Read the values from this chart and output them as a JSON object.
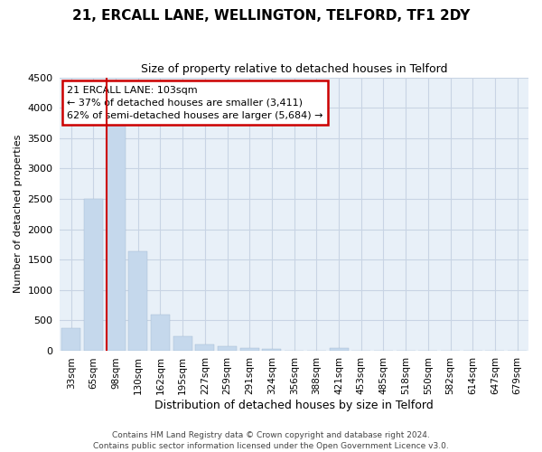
{
  "title": "21, ERCALL LANE, WELLINGTON, TELFORD, TF1 2DY",
  "subtitle": "Size of property relative to detached houses in Telford",
  "xlabel": "Distribution of detached houses by size in Telford",
  "ylabel": "Number of detached properties",
  "categories": [
    "33sqm",
    "65sqm",
    "98sqm",
    "130sqm",
    "162sqm",
    "195sqm",
    "227sqm",
    "259sqm",
    "291sqm",
    "324sqm",
    "356sqm",
    "388sqm",
    "421sqm",
    "453sqm",
    "485sqm",
    "518sqm",
    "550sqm",
    "582sqm",
    "614sqm",
    "647sqm",
    "679sqm"
  ],
  "values": [
    370,
    2500,
    3720,
    1630,
    590,
    240,
    100,
    75,
    50,
    35,
    0,
    0,
    50,
    0,
    0,
    0,
    0,
    0,
    0,
    0,
    0
  ],
  "highlight_index": 2,
  "bar_color": "#c5d8ec",
  "bar_edge_color": "#a0b8d0",
  "highlight_line_color": "#cc0000",
  "grid_color": "#c8d4e4",
  "bg_color": "#e8f0f8",
  "annotation_box_edgecolor": "#cc0000",
  "annotation_line1": "21 ERCALL LANE: 103sqm",
  "annotation_line2": "← 37% of detached houses are smaller (3,411)",
  "annotation_line3": "62% of semi-detached houses are larger (5,684) →",
  "footer_line1": "Contains HM Land Registry data © Crown copyright and database right 2024.",
  "footer_line2": "Contains public sector information licensed under the Open Government Licence v3.0.",
  "ylim": [
    0,
    4500
  ],
  "yticks": [
    0,
    500,
    1000,
    1500,
    2000,
    2500,
    3000,
    3500,
    4000,
    4500
  ],
  "title_fontsize": 11,
  "subtitle_fontsize": 9,
  "xlabel_fontsize": 9,
  "ylabel_fontsize": 8,
  "tick_fontsize": 8,
  "xtick_fontsize": 7.5
}
